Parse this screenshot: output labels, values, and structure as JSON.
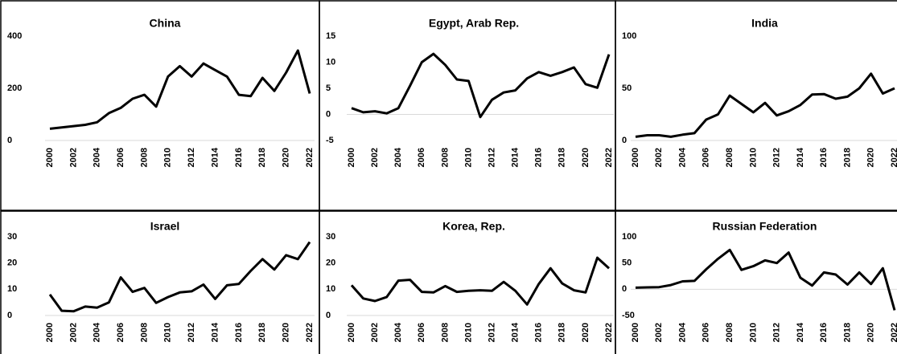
{
  "chart_data": [
    {
      "type": "line",
      "title": "China",
      "color": "#000000",
      "categories": [
        "2000",
        null,
        "2002",
        null,
        "2004",
        null,
        "2006",
        null,
        "2008",
        null,
        "2010",
        null,
        "2012",
        null,
        "2014",
        null,
        "2016",
        null,
        "2018",
        null,
        "2020",
        null,
        "2022"
      ],
      "values": [
        45,
        50,
        55,
        60,
        70,
        105,
        125,
        160,
        175,
        130,
        245,
        285,
        245,
        295,
        270,
        245,
        175,
        170,
        240,
        190,
        260,
        345,
        180
      ],
      "ylim": [
        0,
        400
      ],
      "yticks": [
        0,
        200,
        400
      ]
    },
    {
      "type": "line",
      "title": "Egypt, Arab Rep.",
      "color": "#000000",
      "categories": [
        "2000",
        null,
        "2002",
        null,
        "2004",
        null,
        "2006",
        null,
        "2008",
        null,
        "2010",
        null,
        "2012",
        null,
        "2014",
        null,
        "2016",
        null,
        "2018",
        null,
        "2020",
        null,
        "2022"
      ],
      "values": [
        1.2,
        0.4,
        0.6,
        0.2,
        1.2,
        5.5,
        10,
        11.6,
        9.5,
        6.7,
        6.4,
        -0.5,
        2.8,
        4.2,
        4.6,
        6.9,
        8.1,
        7.4,
        8.1,
        9,
        5.8,
        5.1,
        11.5
      ],
      "ylim": [
        -5,
        15
      ],
      "yticks": [
        -5,
        0,
        5,
        10,
        15
      ]
    },
    {
      "type": "line",
      "title": "India",
      "color": "#000000",
      "categories": [
        "2000",
        null,
        "2002",
        null,
        "2004",
        null,
        "2006",
        null,
        "2008",
        null,
        "2010",
        null,
        "2012",
        null,
        "2014",
        null,
        "2016",
        null,
        "2018",
        null,
        "2020",
        null,
        "2022"
      ],
      "values": [
        3.5,
        5,
        5,
        3.5,
        5.5,
        7,
        20,
        25,
        43,
        35,
        27,
        36,
        24,
        28,
        34,
        44,
        44.5,
        40,
        42,
        50,
        64,
        45,
        50
      ],
      "ylim": [
        0,
        100
      ],
      "yticks": [
        0,
        50,
        100
      ]
    },
    {
      "type": "line",
      "title": "Israel",
      "color": "#000000",
      "categories": [
        "2000",
        null,
        "2002",
        null,
        "2004",
        null,
        "2006",
        null,
        "2008",
        null,
        "2010",
        null,
        "2012",
        null,
        "2014",
        null,
        "2016",
        null,
        "2018",
        null,
        "2020",
        null,
        "2022"
      ],
      "values": [
        8,
        1.8,
        1.6,
        3.4,
        3,
        5,
        14.5,
        9,
        10.5,
        4.8,
        7,
        8.8,
        9.2,
        11.8,
        6.3,
        11.5,
        12,
        17,
        21.5,
        17.5,
        23,
        21.5,
        28
      ],
      "ylim": [
        0,
        30
      ],
      "yticks": [
        0,
        10,
        20,
        30
      ]
    },
    {
      "type": "line",
      "title": "Korea, Rep.",
      "color": "#000000",
      "categories": [
        "2000",
        null,
        "2002",
        null,
        "2004",
        null,
        "2006",
        null,
        "2008",
        null,
        "2010",
        null,
        "2012",
        null,
        "2014",
        null,
        "2016",
        null,
        "2018",
        null,
        "2020",
        null,
        "2022"
      ],
      "values": [
        11.5,
        6.5,
        5.5,
        7,
        13.3,
        13.6,
        9,
        8.8,
        11.2,
        9,
        9.4,
        9.6,
        9.4,
        12.8,
        9.4,
        4.2,
        12,
        18,
        12.2,
        9.6,
        8.8,
        22,
        18
      ],
      "ylim": [
        0,
        30
      ],
      "yticks": [
        0,
        10,
        20,
        30
      ]
    },
    {
      "type": "line",
      "title": "Russian Federation",
      "color": "#000000",
      "categories": [
        "2000",
        null,
        "2002",
        null,
        "2004",
        null,
        "2006",
        null,
        "2008",
        null,
        "2010",
        null,
        "2012",
        null,
        "2014",
        null,
        "2016",
        null,
        "2018",
        null,
        "2020",
        null,
        "2022"
      ],
      "values": [
        3,
        3.5,
        4,
        8,
        15,
        16,
        38,
        58,
        75,
        37,
        44,
        55,
        50,
        70,
        22,
        7,
        32,
        28,
        9,
        32,
        10,
        40,
        -40
      ],
      "ylim": [
        -50,
        100
      ],
      "yticks": [
        -50,
        0,
        50,
        100
      ]
    }
  ]
}
